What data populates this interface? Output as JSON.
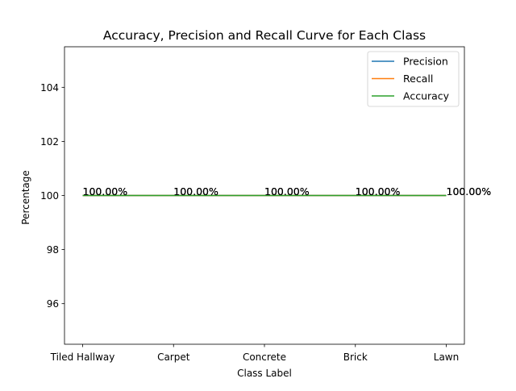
{
  "chart_data": {
    "type": "line",
    "title": "Accuracy, Precision and Recall Curve for Each Class",
    "xlabel": "Class Label",
    "ylabel": "Percentage",
    "categories": [
      "Tiled Hallway",
      "Carpet",
      "Concrete",
      "Brick",
      "Lawn"
    ],
    "series": [
      {
        "name": "Precision",
        "values": [
          100,
          100,
          100,
          100,
          100
        ],
        "color": "#1f77b4"
      },
      {
        "name": "Recall",
        "values": [
          100,
          100,
          100,
          100,
          100
        ],
        "color": "#ff7f0e"
      },
      {
        "name": "Accuracy",
        "values": [
          100,
          100,
          100,
          100,
          100
        ],
        "color": "#2ca02c"
      }
    ],
    "data_labels": [
      "100.00%",
      "100.00%",
      "100.00%",
      "100.00%",
      "100.00%"
    ],
    "yticks": [
      96,
      98,
      100,
      102,
      104
    ],
    "ylim": [
      94.5,
      105.5
    ],
    "grid": false,
    "legend_position": "top-right"
  }
}
